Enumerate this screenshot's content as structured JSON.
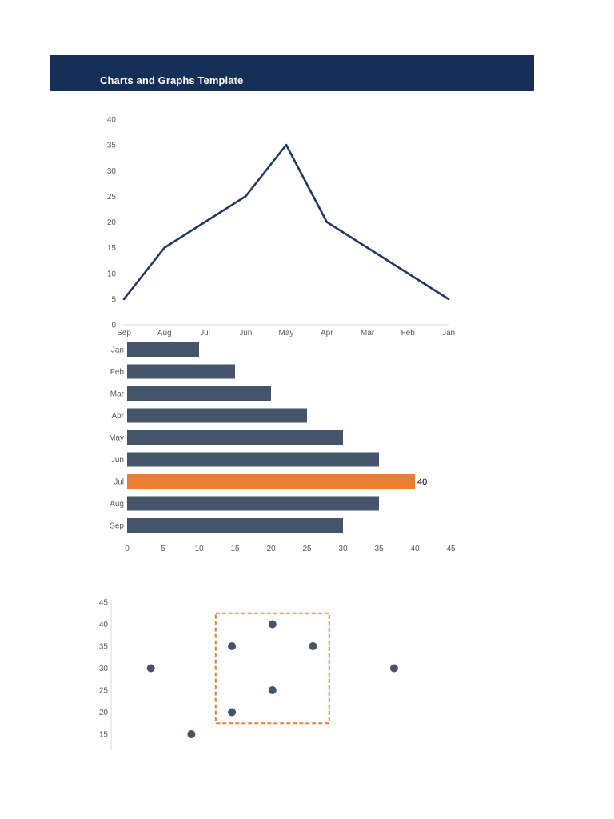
{
  "header": {
    "title": "Charts and Graphs Template",
    "color": "#152f57"
  },
  "chart_data": [
    {
      "type": "line",
      "categories": [
        "Sep",
        "Aug",
        "Jul",
        "Jun",
        "May",
        "Apr",
        "Mar",
        "Feb",
        "Jan"
      ],
      "series": [
        {
          "values": [
            5,
            15,
            20,
            25,
            35,
            20,
            15,
            10,
            5
          ],
          "color": "#1f3864"
        }
      ],
      "ylim": [
        0,
        40
      ],
      "yticks": [
        0,
        5,
        10,
        15,
        20,
        25,
        30,
        35,
        40
      ],
      "grid": false
    },
    {
      "type": "bar",
      "orientation": "horizontal",
      "categories": [
        "Jan",
        "Feb",
        "Mar",
        "Apr",
        "May",
        "Jun",
        "Jul",
        "Aug",
        "Sep"
      ],
      "values": [
        10,
        15,
        20,
        25,
        30,
        35,
        40,
        35,
        30
      ],
      "xlim": [
        0,
        45
      ],
      "xticks": [
        0,
        5,
        10,
        15,
        20,
        25,
        30,
        35,
        40,
        45
      ],
      "bar_color": "#44546a",
      "highlight": {
        "category": "Jul",
        "color": "#ed7d31",
        "label": "40"
      },
      "grid": false
    },
    {
      "type": "scatter",
      "points": [
        {
          "x": 1,
          "y": 30
        },
        {
          "x": 2,
          "y": 15
        },
        {
          "x": 3,
          "y": 35
        },
        {
          "x": 3,
          "y": 20
        },
        {
          "x": 4,
          "y": 40
        },
        {
          "x": 4,
          "y": 25
        },
        {
          "x": 5,
          "y": 35
        },
        {
          "x": 7,
          "y": 30
        }
      ],
      "ylim": [
        15,
        45
      ],
      "yticks": [
        15,
        20,
        25,
        30,
        35,
        40,
        45
      ],
      "point_color": "#44546a",
      "highlight_box": {
        "x_range": [
          2.6,
          5.4
        ],
        "y_range": [
          17.5,
          42.5
        ],
        "color": "#ed7d31",
        "style": "dashed"
      }
    }
  ]
}
